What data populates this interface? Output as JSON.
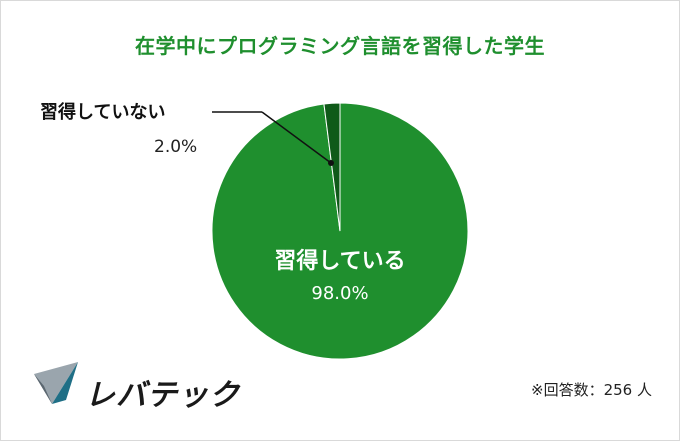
{
  "chart_data": {
    "type": "pie",
    "title": "在学中にプログラミング言語を習得した学生",
    "slices": [
      {
        "label": "習得している",
        "value": 98.0,
        "display": "98.0%",
        "color": "#1f8f2e"
      },
      {
        "label": "習得していない",
        "value": 2.0,
        "display": "2.0%",
        "color": "#0f5a19"
      }
    ],
    "legend": "none"
  },
  "footer": {
    "note": "※回答数：256 人",
    "logo_text": "レバテック"
  }
}
